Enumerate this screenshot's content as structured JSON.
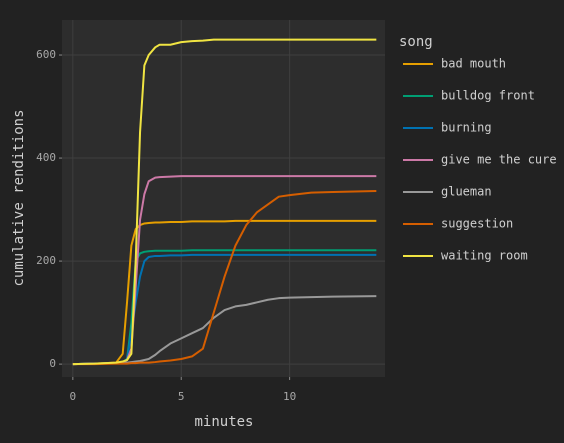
{
  "chart_data": {
    "type": "line",
    "xlabel": "minutes",
    "ylabel": "cumulative renditions",
    "legend_title": "song",
    "x": [
      0,
      1,
      2,
      2.3,
      2.5,
      2.7,
      2.9,
      3.1,
      3.3,
      3.5,
      3.8,
      4,
      4.5,
      5,
      5.5,
      6,
      6.5,
      7,
      7.5,
      8,
      8.5,
      9,
      9.5,
      10,
      11,
      12,
      14
    ],
    "series": [
      {
        "name": "bad mouth",
        "color": "#E69F00",
        "values": [
          0,
          1,
          3,
          20,
          120,
          230,
          262,
          270,
          273,
          274,
          275,
          275,
          276,
          276,
          277,
          277,
          277,
          277,
          278,
          278,
          278,
          278,
          278,
          278,
          278,
          278,
          278
        ]
      },
      {
        "name": "bulldog front",
        "color": "#009E73",
        "values": [
          0,
          1,
          2,
          4,
          10,
          80,
          200,
          215,
          218,
          219,
          220,
          220,
          220,
          220,
          221,
          221,
          221,
          221,
          221,
          221,
          221,
          221,
          221,
          221,
          221,
          221,
          221
        ]
      },
      {
        "name": "burning",
        "color": "#0072B2",
        "values": [
          0,
          1,
          2,
          4,
          8,
          60,
          120,
          170,
          200,
          208,
          210,
          210,
          211,
          211,
          212,
          212,
          212,
          212,
          212,
          212,
          212,
          212,
          212,
          212,
          212,
          212,
          212
        ]
      },
      {
        "name": "give me the cure",
        "color": "#CC79A7",
        "values": [
          0,
          1,
          2,
          4,
          8,
          30,
          150,
          280,
          330,
          355,
          362,
          363,
          364,
          365,
          365,
          365,
          365,
          365,
          365,
          365,
          365,
          365,
          365,
          365,
          365,
          365,
          365
        ]
      },
      {
        "name": "glueman",
        "color": "#999999",
        "values": [
          0,
          1,
          2,
          3,
          3,
          4,
          5,
          6,
          8,
          10,
          18,
          25,
          40,
          50,
          60,
          70,
          90,
          105,
          112,
          115,
          120,
          125,
          128,
          129,
          130,
          131,
          132
        ]
      },
      {
        "name": "suggestion",
        "color": "#D55E00",
        "values": [
          0,
          0,
          1,
          1,
          1,
          2,
          2,
          3,
          3,
          3,
          4,
          5,
          7,
          10,
          15,
          30,
          100,
          170,
          230,
          270,
          295,
          310,
          325,
          328,
          333,
          334,
          336
        ]
      },
      {
        "name": "waiting room",
        "color": "#F0E442",
        "values": [
          0,
          1,
          3,
          5,
          8,
          20,
          200,
          450,
          580,
          600,
          615,
          620,
          620,
          625,
          627,
          628,
          630,
          630,
          630,
          630,
          630,
          630,
          630,
          630,
          630,
          630,
          630
        ]
      }
    ],
    "xlim": [
      -0.5,
      14.4
    ],
    "xticks": [
      0,
      5,
      10
    ],
    "ylim": [
      -25,
      668
    ],
    "yticks": [
      0,
      200,
      400,
      600
    ],
    "grid": true,
    "legend": "right"
  }
}
